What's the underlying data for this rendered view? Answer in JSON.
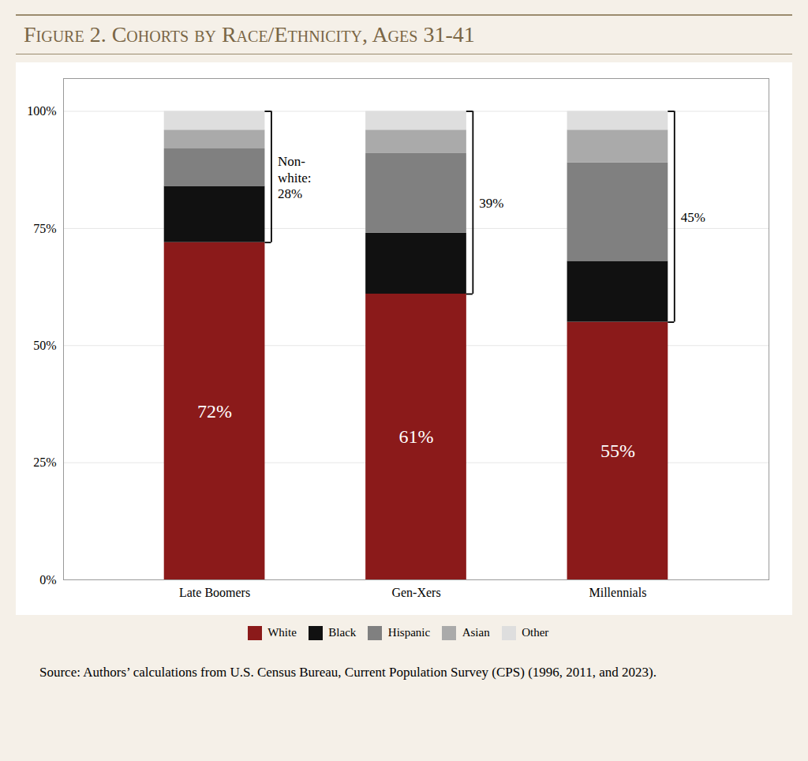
{
  "chart_data": {
    "type": "bar",
    "title": "Figure 2. Cohorts by Race/Ethnicity, Ages 31-41",
    "categories": [
      "Late Boomers",
      "Gen-Xers",
      "Millennials"
    ],
    "series": [
      {
        "name": "White",
        "color": "#8B1A1A",
        "values": [
          72,
          61,
          55
        ],
        "value_labels": [
          "72%",
          "61%",
          "55%"
        ]
      },
      {
        "name": "Black",
        "color": "#111111",
        "values": [
          12,
          13,
          13
        ]
      },
      {
        "name": "Hispanic",
        "color": "#808080",
        "values": [
          8,
          17,
          21
        ]
      },
      {
        "name": "Asian",
        "color": "#AAAAAA",
        "values": [
          4,
          5,
          7
        ]
      },
      {
        "name": "Other",
        "color": "#DEDEDE",
        "values": [
          4,
          4,
          4
        ]
      }
    ],
    "stacked": true,
    "ylim": [
      0,
      107
    ],
    "yticks": [
      {
        "value": 0,
        "label": "0%"
      },
      {
        "value": 25,
        "label": "25%"
      },
      {
        "value": 50,
        "label": "50%"
      },
      {
        "value": 75,
        "label": "75%"
      },
      {
        "value": 100,
        "label": "100%"
      }
    ],
    "grid": true,
    "legend": "bottom",
    "annotations": [
      {
        "category": "Late Boomers",
        "text": "Non-\nwhite:\n28%"
      },
      {
        "category": "Gen-Xers",
        "text": "39%"
      },
      {
        "category": "Millennials",
        "text": "45%"
      }
    ],
    "caption": "Source: Authors’ calculations from U.S. Census Bureau, Current Population Survey (CPS) (1996, 2011, and 2023)."
  }
}
